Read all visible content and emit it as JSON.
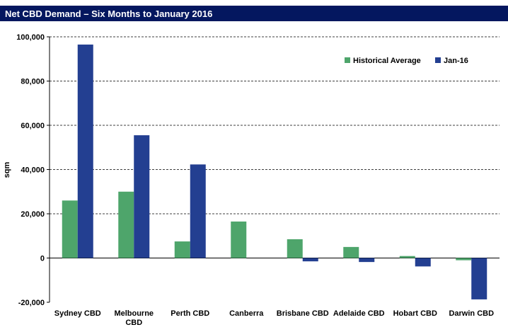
{
  "chart_data": {
    "type": "bar",
    "title": "Net CBD Demand – Six Months to January 2016",
    "ylabel": "sqm",
    "xlabel": "",
    "ylim": [
      -20000,
      100000
    ],
    "yticks": [
      -20000,
      0,
      20000,
      40000,
      60000,
      80000,
      100000
    ],
    "ytick_labels": [
      "-20,000",
      "0",
      "20,000",
      "40,000",
      "60,000",
      "80,000",
      "100,000"
    ],
    "grid": true,
    "legend_position": "top-right",
    "categories": [
      [
        "Sydney CBD"
      ],
      [
        "Melbourne",
        "CBD"
      ],
      [
        "Perth CBD"
      ],
      [
        "Canberra"
      ],
      [
        "Brisbane CBD"
      ],
      [
        "Adelaide CBD"
      ],
      [
        "Hobart CBD"
      ],
      [
        "Darwin CBD"
      ]
    ],
    "series": [
      {
        "name": "Historical Average",
        "color": "#4EA56B",
        "values": [
          26000,
          30000,
          7500,
          16500,
          8500,
          5000,
          900,
          -1000
        ]
      },
      {
        "name": "Jan-16",
        "color": "#233F91",
        "values": [
          96500,
          55500,
          42300,
          0,
          -1500,
          -1800,
          -3800,
          -18700
        ]
      }
    ]
  },
  "colors": {
    "title_bar": "#04175F",
    "title_text": "#FFFFFF"
  }
}
